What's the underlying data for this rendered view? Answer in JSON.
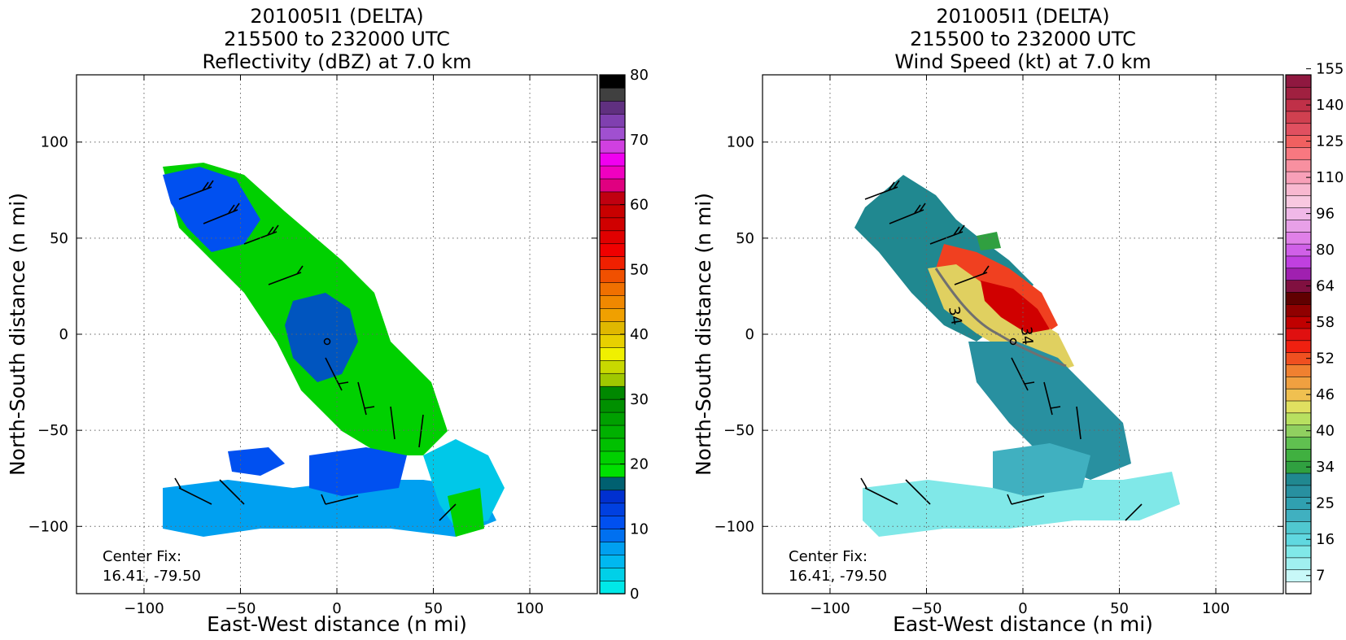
{
  "panels": [
    {
      "title_lines": [
        "201005I1 (DELTA)",
        "215500 to 232000 UTC",
        "Reflectivity (dBZ) at 7.0 km"
      ],
      "xlabel": "East-West distance (n mi)",
      "ylabel": "North-South distance (n mi)",
      "center_fix": [
        "Center Fix:",
        "16.41, -79.50"
      ],
      "colorbar": {
        "ticks": [
          "0",
          "10",
          "20",
          "30",
          "40",
          "50",
          "60",
          "70",
          "80"
        ],
        "colors": [
          "#00e8e8",
          "#00d0e8",
          "#00b8f0",
          "#00a0f0",
          "#0070f0",
          "#0050f0",
          "#0040e0",
          "#0030d0",
          "#006070",
          "#00e000",
          "#00d000",
          "#00c000",
          "#00b000",
          "#00a000",
          "#009000",
          "#008800",
          "#a0c800",
          "#c8d800",
          "#f0f000",
          "#e8d000",
          "#e0b800",
          "#f0a000",
          "#f08800",
          "#f07000",
          "#f05000",
          "#f02000",
          "#f00000",
          "#e00000",
          "#d00000",
          "#c80000",
          "#c00010",
          "#e00080",
          "#f000c0",
          "#f000f0",
          "#d040e0",
          "#a050d0",
          "#8040b0",
          "#603080",
          "#404040",
          "#000000"
        ]
      }
    },
    {
      "title_lines": [
        "201005I1 (DELTA)",
        "215500 to 232000 UTC",
        "Wind Speed (kt) at 7.0 km"
      ],
      "xlabel": "East-West distance (n mi)",
      "ylabel": "North-South distance (n mi)",
      "center_fix": [
        "Center Fix:",
        "16.41, -79.50"
      ],
      "contour_labels": [
        "34",
        "34"
      ],
      "colorbar": {
        "ticks": [
          "7",
          "16",
          "25",
          "34",
          "40",
          "46",
          "52",
          "58",
          "64",
          "80",
          "96",
          "110",
          "125",
          "140",
          "155"
        ],
        "colors": [
          "#ffffff",
          "#c8f8f8",
          "#a0f0f0",
          "#80e8e8",
          "#60d8e0",
          "#50c8d0",
          "#40b0c0",
          "#30a0b0",
          "#2890a0",
          "#208890",
          "#30a040",
          "#40b040",
          "#60c050",
          "#90d060",
          "#b8e060",
          "#e0e060",
          "#f0c050",
          "#f0a040",
          "#f08030",
          "#f05020",
          "#f02010",
          "#e01010",
          "#c00000",
          "#900000",
          "#600000",
          "#801040",
          "#a020b0",
          "#c040e0",
          "#d060e8",
          "#e080e8",
          "#e8a0e8",
          "#f0b8e8",
          "#f8c8e0",
          "#f8b8d0",
          "#f8a0b8",
          "#f890a0",
          "#f87880",
          "#f06060",
          "#e05060",
          "#d04050",
          "#c03048",
          "#a02040",
          "#901840"
        ]
      }
    }
  ],
  "chart_data": [
    {
      "type": "heatmap",
      "title": "201005I1 (DELTA) 215500 to 232000 UTC Reflectivity (dBZ) at 7.0 km",
      "xlabel": "East-West distance (n mi)",
      "ylabel": "North-South distance (n mi)",
      "xlim": [
        -135,
        135
      ],
      "ylim": [
        -135,
        135
      ],
      "xticks": [
        -100,
        -50,
        0,
        50,
        100
      ],
      "yticks": [
        -100,
        -50,
        0,
        50,
        100
      ],
      "xtick_labels": [
        "−100",
        "−50",
        "0",
        "50",
        "100"
      ],
      "ytick_labels": [
        "−100",
        "−50",
        "0",
        "50",
        "100"
      ],
      "grid": true,
      "colorbar_range": [
        0,
        80
      ],
      "center": [
        -3,
        -3
      ]
    },
    {
      "type": "heatmap",
      "title": "201005I1 (DELTA) 215500 to 232000 UTC Wind Speed (kt) at 7.0 km",
      "xlabel": "East-West distance (n mi)",
      "ylabel": "North-South distance (n mi)",
      "xlim": [
        -135,
        135
      ],
      "ylim": [
        -135,
        135
      ],
      "xticks": [
        -100,
        -50,
        0,
        50,
        100
      ],
      "yticks": [
        -100,
        -50,
        0,
        50,
        100
      ],
      "xtick_labels": [
        "−100",
        "−50",
        "0",
        "50",
        "100"
      ],
      "ytick_labels": [
        "−100",
        "−50",
        "0",
        "50",
        "100"
      ],
      "grid": true,
      "colorbar_range": [
        7,
        160
      ],
      "center": [
        -3,
        -3
      ]
    }
  ]
}
